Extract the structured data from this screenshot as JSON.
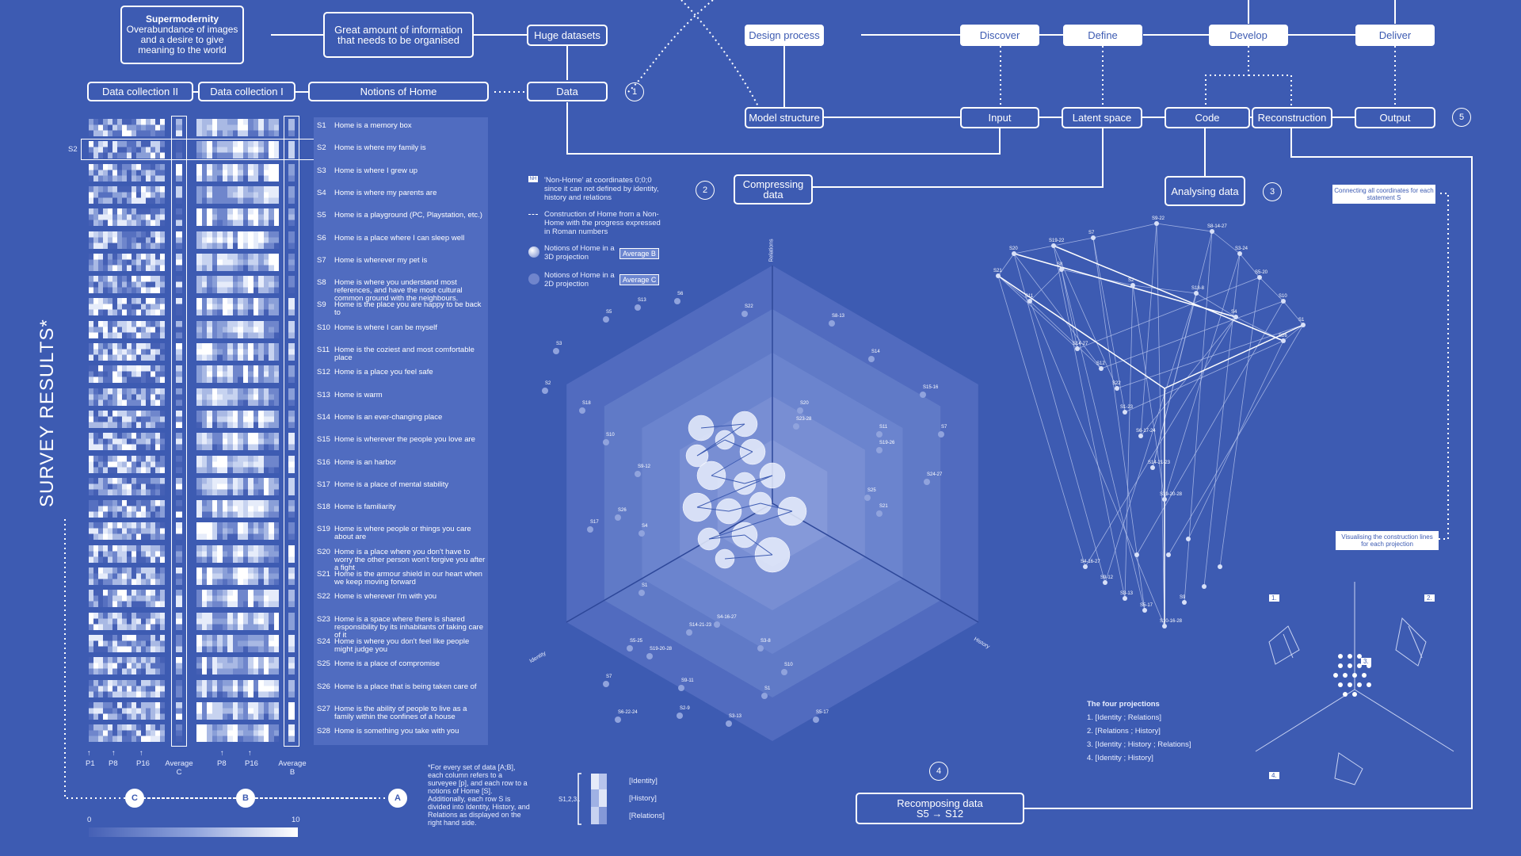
{
  "top_boxes": {
    "supermodernity_title": "Supermodernity",
    "supermodernity_text": "Overabundance of images and a desire to give meaning to the world",
    "great_amount": "Great amount of information that needs to be organised",
    "huge_datasets": "Huge datasets",
    "data_collection_2": "Data collection II",
    "data_collection_1": "Data collection I",
    "notions_of_home": "Notions of Home",
    "data": "Data"
  },
  "process": {
    "design_process": "Design process",
    "discover": "Discover",
    "define": "Define",
    "develop": "Develop",
    "deliver": "Deliver",
    "model_structure": "Model structure",
    "input": "Input",
    "latent_space": "Latent space",
    "code": "Code",
    "reconstruction": "Reconstruction",
    "output": "Output",
    "compressing_data": "Compressing data",
    "analysing_data": "Analysing data",
    "recomposing_data": "Recomposing data",
    "recomposing_sub": "S5 → S12"
  },
  "steps": [
    "1",
    "2",
    "3",
    "4",
    "5"
  ],
  "survey_title": "SURVEY RESULTS*",
  "s2_marker": "S2",
  "statements": [
    {
      "id": "S1",
      "text": "Home is a memory box"
    },
    {
      "id": "S2",
      "text": "Home is where my family is"
    },
    {
      "id": "S3",
      "text": "Home is where I grew up"
    },
    {
      "id": "S4",
      "text": "Home is where my parents are"
    },
    {
      "id": "S5",
      "text": "Home is a playground (PC, Playstation, etc.)"
    },
    {
      "id": "S6",
      "text": "Home is a place where I can sleep well"
    },
    {
      "id": "S7",
      "text": "Home is wherever my pet is"
    },
    {
      "id": "S8",
      "text": "Home is where you understand most references, and have the most cultural common ground with the neighbours."
    },
    {
      "id": "S9",
      "text": "Home is the place you are happy to be back to"
    },
    {
      "id": "S10",
      "text": "Home is where I can be myself"
    },
    {
      "id": "S11",
      "text": "Home is the coziest and most comfortable place"
    },
    {
      "id": "S12",
      "text": "Home is a place you feel safe"
    },
    {
      "id": "S13",
      "text": "Home is warm"
    },
    {
      "id": "S14",
      "text": "Home is an ever-changing place"
    },
    {
      "id": "S15",
      "text": "Home is wherever the people you love are"
    },
    {
      "id": "S16",
      "text": "Home is an harbor"
    },
    {
      "id": "S17",
      "text": "Home is a place of mental stability"
    },
    {
      "id": "S18",
      "text": "Home is familiarity"
    },
    {
      "id": "S19",
      "text": "Home is where people or things you care about are"
    },
    {
      "id": "S20",
      "text": "Home is a place where you don't have to worry the other person won't forgive you after a fight"
    },
    {
      "id": "S21",
      "text": "Home is the armour shield in our heart when we keep moving forward"
    },
    {
      "id": "S22",
      "text": "Home is wherever I'm with you"
    },
    {
      "id": "S23",
      "text": "Home is a space where there is shared responsibility by its inhabitants of taking care of it"
    },
    {
      "id": "S24",
      "text": "Home is where you don't feel like people might judge you"
    },
    {
      "id": "S25",
      "text": "Home is a place of compromise"
    },
    {
      "id": "S26",
      "text": "Home is a place that is being taken care of"
    },
    {
      "id": "S27",
      "text": "Home is the ability of people to live as a family within the confines of a house"
    },
    {
      "id": "S28",
      "text": "Home is something you take with you"
    }
  ],
  "axis_labels": {
    "p1": "P1",
    "p8": "P8",
    "p16": "P16",
    "avg_c": "Average C",
    "p8b": "P8",
    "p16b": "P16",
    "avg_b": "Average B"
  },
  "abc": [
    "C",
    "B",
    "A"
  ],
  "scale": {
    "min": "0",
    "max": "10"
  },
  "footnote": "*For every set of data [A;B], each column refers to a surveyee [p], and each row to a notions of Home [S]. Additionally, each row S is divided into Identity, History, and Relations as displayed on the right hand side.",
  "s_legend": {
    "label": "S1,2,3..",
    "identity": "[Identity]",
    "history": "[History]",
    "relations": "[Relations]"
  },
  "key": {
    "nh_tag": "NH",
    "non_home": "'Non-Home' at coordinates 0;0;0 since it can not defined by identity, history and relations",
    "construction": "Construction of Home from a Non-Home with the progress expressed in Roman numbers",
    "notions_3d": "Notions of Home in a 3D projection",
    "avg_b_tag": "Average B",
    "notions_2d": "Notions of Home in a 2D projection",
    "avg_c_tag": "Average C"
  },
  "radar_axes": {
    "relations": "Relations",
    "identity": "Identity",
    "history": "History"
  },
  "annotations": {
    "connecting": "Connecting all coordinates for each statement S",
    "visualising": "Visualising the construction lines for each projection"
  },
  "projections": {
    "title": "The four projections",
    "items": [
      "1. [Identity ; Relations]",
      "2. [Relations ; History]",
      "3. [Identity ; History ; Relations]",
      "4. [Identity ; History]"
    ],
    "markers": [
      "1.",
      "2.",
      "3.",
      "4."
    ]
  },
  "radar_labels": [
    "S2",
    "S3",
    "S5",
    "S13",
    "S6",
    "S22",
    "S8-13",
    "S14",
    "S15-16",
    "S7",
    "S24-27",
    "S25",
    "S20",
    "S17",
    "S9-12",
    "S26",
    "S18",
    "S19-26",
    "S11",
    "S21",
    "S23-28",
    "S10",
    "S4",
    "S1",
    "S5-25",
    "S7",
    "S6-22-24",
    "S19-20-28",
    "S14-21-23",
    "S4-16-27",
    "S9-11",
    "S3-8",
    "S10",
    "S1",
    "S2-9",
    "S3-13",
    "S5-17"
  ],
  "pyramid_labels": [
    "S21",
    "S20",
    "S19-22",
    "S7",
    "S9-22",
    "S8-14-27",
    "S3-24",
    "S5-20",
    "S10",
    "S1",
    "S26",
    "S4",
    "S18-8",
    "S2",
    "S8",
    "S11",
    "S14-27",
    "S12",
    "S22",
    "S1-23",
    "S6-17-24",
    "S14-21-23",
    "S19-20-28",
    "S4-16-27",
    "S9-12",
    "S3-13",
    "S5-17",
    "S10-16-28",
    "S9"
  ]
}
